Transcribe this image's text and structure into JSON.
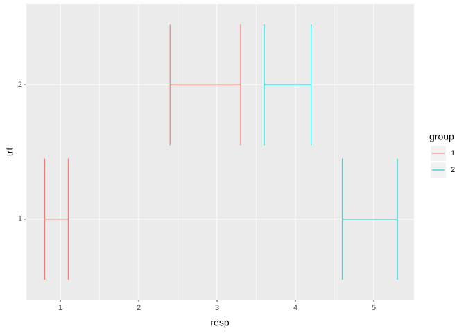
{
  "chart_data": {
    "type": "errorbarh",
    "x_label": "resp",
    "y_label": "trt",
    "legend_title": "group",
    "categories": [
      "1",
      "2"
    ],
    "series": [
      {
        "name": "1",
        "color": "#F8766D",
        "xmin": [
          0.8,
          2.4
        ],
        "xmax": [
          1.1,
          3.3
        ]
      },
      {
        "name": "2",
        "color": "#00BFC4",
        "xmin": [
          4.6,
          3.6
        ],
        "xmax": [
          5.3,
          4.2
        ]
      }
    ],
    "xlim": [
      0.566,
      5.513
    ],
    "xticks": [
      1,
      2,
      3,
      4,
      5
    ],
    "grid": true
  }
}
